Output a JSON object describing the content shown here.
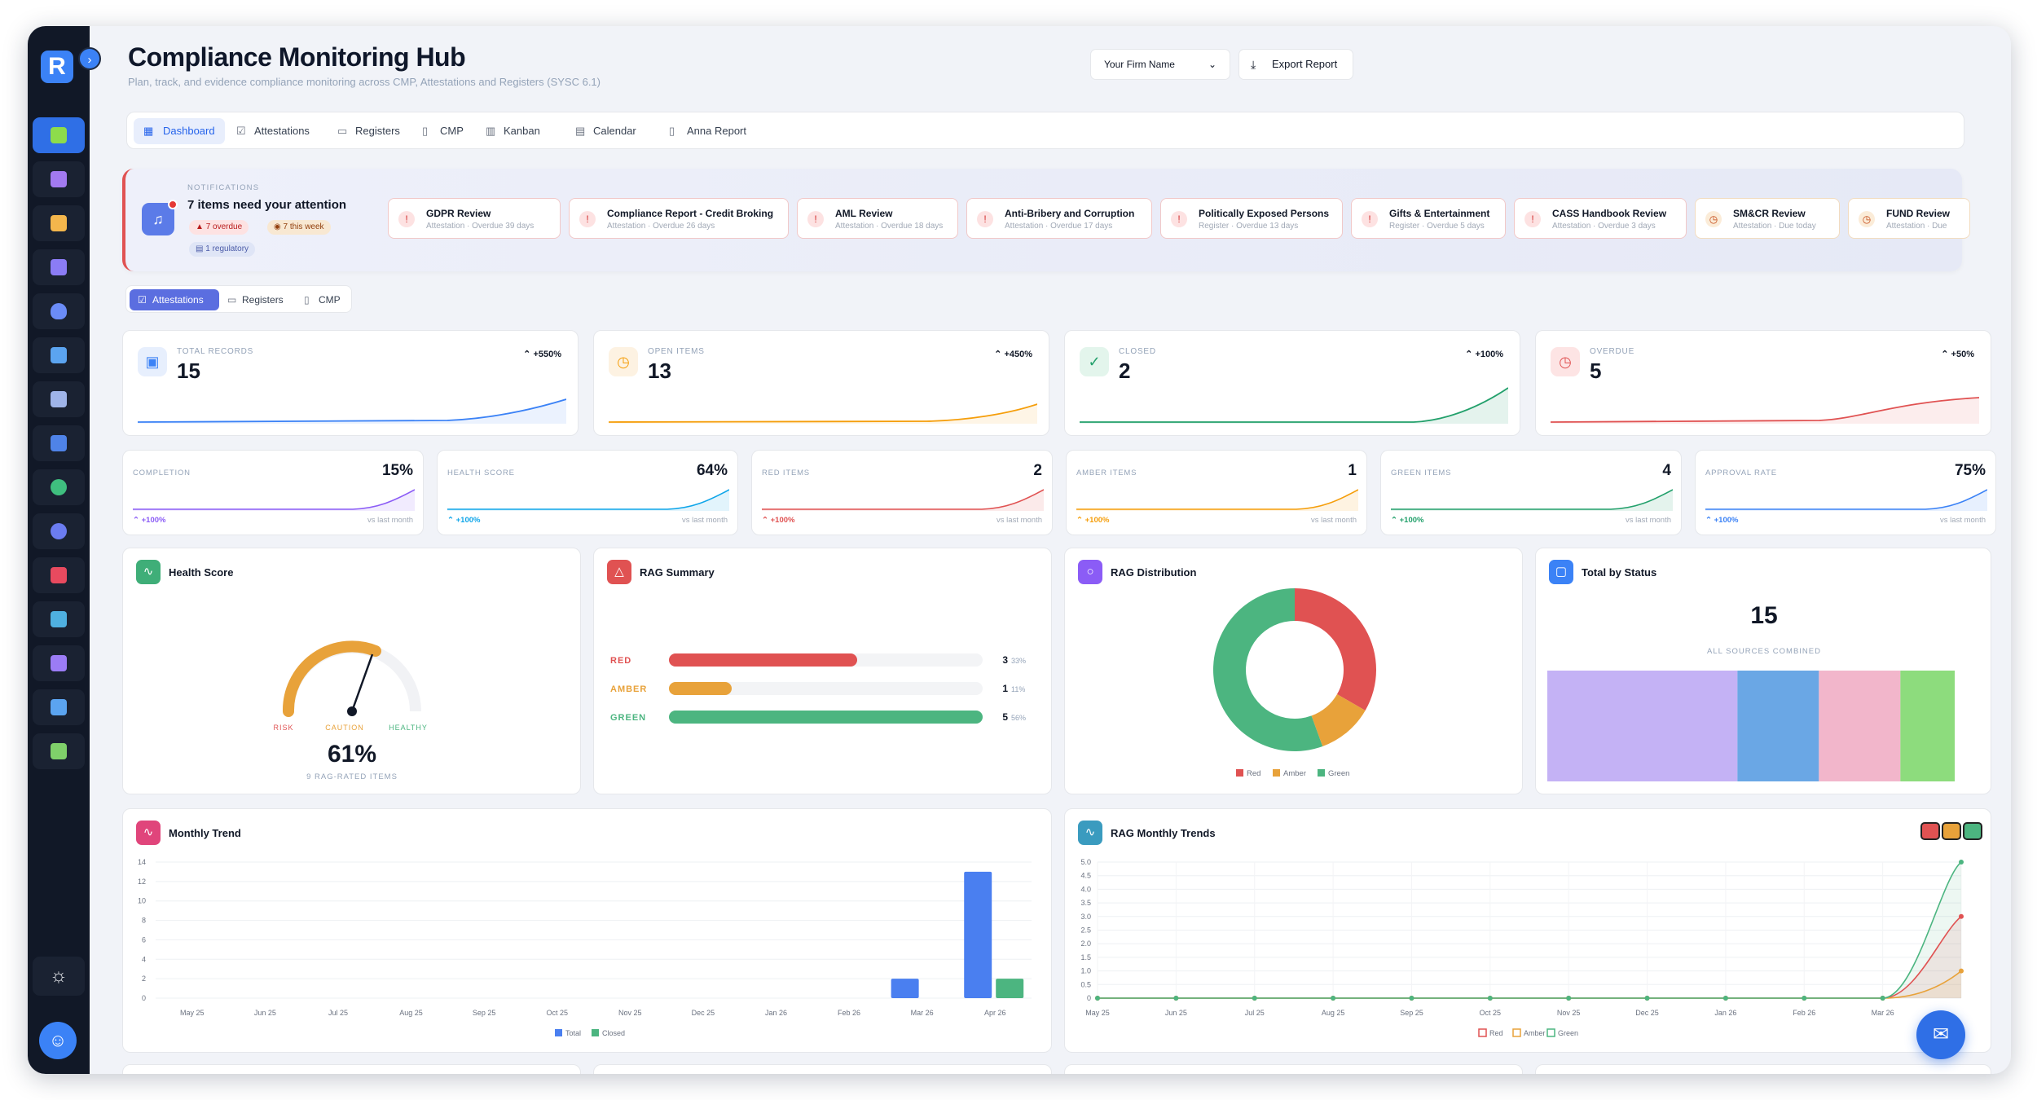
{
  "header": {
    "title": "Compliance Monitoring Hub",
    "subtitle": "Plan, track, and evidence compliance monitoring across CMP, Attestations and Registers (SYSC 6.1)",
    "firm_select": "Your Firm Name",
    "export_label": "Export Report"
  },
  "logo_letter": "R",
  "tabs": [
    {
      "label": "Dashboard",
      "icon": "grid-icon"
    },
    {
      "label": "Attestations",
      "icon": "check-square-icon"
    },
    {
      "label": "Registers",
      "icon": "book-icon"
    },
    {
      "label": "CMP",
      "icon": "file-icon"
    },
    {
      "label": "Kanban",
      "icon": "kanban-icon"
    },
    {
      "label": "Calendar",
      "icon": "calendar-icon"
    },
    {
      "label": "Anna Report",
      "icon": "report-icon"
    }
  ],
  "notifications": {
    "label": "NOTIFICATIONS",
    "heading": "7 items need your attention",
    "overdue": "7 overdue",
    "this_week": "7 this week",
    "regulatory": "1 regulatory",
    "items": [
      {
        "title": "GDPR Review",
        "sub": "Attestation · Overdue 39 days"
      },
      {
        "title": "Compliance Report - Credit Broking",
        "sub": "Attestation · Overdue 26 days"
      },
      {
        "title": "AML Review",
        "sub": "Attestation · Overdue 18 days"
      },
      {
        "title": "Anti-Bribery and Corruption",
        "sub": "Attestation · Overdue 17 days"
      },
      {
        "title": "Politically Exposed Persons",
        "sub": "Register · Overdue 13 days"
      },
      {
        "title": "Gifts & Entertainment",
        "sub": "Register · Overdue 5 days"
      },
      {
        "title": "CASS Handbook Review",
        "sub": "Attestation · Overdue 3 days"
      },
      {
        "title": "SM&CR Review",
        "sub": "Attestation · Due today"
      },
      {
        "title": "FUND Review",
        "sub": "Attestation · Due"
      }
    ]
  },
  "subtabs": [
    {
      "label": "Attestations"
    },
    {
      "label": "Registers"
    },
    {
      "label": "CMP"
    }
  ],
  "kpis": [
    {
      "label": "TOTAL RECORDS",
      "value": "15",
      "change": "+550%",
      "color": "#3b82f6"
    },
    {
      "label": "OPEN ITEMS",
      "value": "13",
      "change": "+450%",
      "color": "#f59e0b"
    },
    {
      "label": "CLOSED",
      "value": "2",
      "change": "+100%",
      "color": "#22a06b"
    },
    {
      "label": "OVERDUE",
      "value": "5",
      "change": "+50%",
      "color": "#e05252"
    }
  ],
  "metrics": [
    {
      "label": "COMPLETION",
      "value": "15%",
      "change": "+100%",
      "vs": "vs last month",
      "color": "#8b5cf6"
    },
    {
      "label": "HEALTH SCORE",
      "value": "64%",
      "change": "+100%",
      "vs": "vs last month",
      "color": "#0ea5e9"
    },
    {
      "label": "RED ITEMS",
      "value": "2",
      "change": "+100%",
      "vs": "vs last month",
      "color": "#e05252"
    },
    {
      "label": "AMBER ITEMS",
      "value": "1",
      "change": "+100%",
      "vs": "vs last month",
      "color": "#f59e0b"
    },
    {
      "label": "GREEN ITEMS",
      "value": "4",
      "change": "+100%",
      "vs": "vs last month",
      "color": "#22a06b"
    },
    {
      "label": "APPROVAL RATE",
      "value": "75%",
      "change": "+100%",
      "vs": "vs last month",
      "color": "#3b82f6"
    }
  ],
  "health": {
    "title": "Health Score",
    "value": "61%",
    "sub": "9 RAG-RATED ITEMS",
    "risk": "RISK",
    "caution": "CAUTION",
    "healthy": "HEALTHY",
    "score": 0.61
  },
  "rag_summary": {
    "title": "RAG Summary",
    "rows": [
      {
        "label": "RED",
        "count": "3",
        "pct": "33%",
        "fraction": 0.6,
        "color": "#e05252"
      },
      {
        "label": "AMBER",
        "count": "1",
        "pct": "11%",
        "fraction": 0.2,
        "color": "#e8a23a"
      },
      {
        "label": "GREEN",
        "count": "5",
        "pct": "56%",
        "fraction": 1.0,
        "color": "#4cb580"
      }
    ]
  },
  "rag_dist": {
    "title": "RAG Distribution",
    "legend": [
      "Red",
      "Amber",
      "Green"
    ],
    "colors": [
      "#e05252",
      "#e8a23a",
      "#4cb580"
    ],
    "values": [
      3,
      1,
      5
    ]
  },
  "status": {
    "title": "Total by Status",
    "total": "15",
    "sub": "ALL SOURCES COMBINED",
    "segments": [
      {
        "value": 7,
        "color": "#c4b2f5"
      },
      {
        "value": 3,
        "color": "#6aa7e5"
      },
      {
        "value": 3,
        "color": "#f2b6cb"
      },
      {
        "value": 2,
        "color": "#8ddc7d"
      }
    ]
  },
  "chart_data": [
    {
      "type": "bar",
      "title": "Monthly Trend",
      "categories": [
        "May 25",
        "Jun 25",
        "Jul 25",
        "Aug 25",
        "Sep 25",
        "Oct 25",
        "Nov 25",
        "Dec 25",
        "Jan 26",
        "Feb 26",
        "Mar 26",
        "Apr 26"
      ],
      "series": [
        {
          "name": "Total",
          "color": "#4a7ff0",
          "values": [
            0,
            0,
            0,
            0,
            0,
            0,
            0,
            0,
            0,
            0,
            2,
            13
          ]
        },
        {
          "name": "Closed",
          "color": "#4cb580",
          "values": [
            0,
            0,
            0,
            0,
            0,
            0,
            0,
            0,
            0,
            0,
            0,
            2
          ]
        }
      ],
      "yticks": [
        "14",
        "12",
        "10",
        "8",
        "6",
        "4",
        "2",
        "0"
      ],
      "ylim": [
        0,
        14
      ]
    },
    {
      "type": "line",
      "title": "RAG Monthly Trends",
      "categories": [
        "May 25",
        "Jun 25",
        "Jul 25",
        "Aug 25",
        "Sep 25",
        "Oct 25",
        "Nov 25",
        "Dec 25",
        "Jan 26",
        "Feb 26",
        "Mar 26",
        ""
      ],
      "series": [
        {
          "name": "Red",
          "color": "#e05252",
          "values": [
            0,
            0,
            0,
            0,
            0,
            0,
            0,
            0,
            0,
            0,
            0,
            3
          ]
        },
        {
          "name": "Amber",
          "color": "#e8a23a",
          "values": [
            0,
            0,
            0,
            0,
            0,
            0,
            0,
            0,
            0,
            0,
            0,
            1
          ]
        },
        {
          "name": "Green",
          "color": "#4cb580",
          "values": [
            0,
            0,
            0,
            0,
            0,
            0,
            0,
            0,
            0,
            0,
            0,
            5
          ]
        }
      ],
      "yticks": [
        "5.0",
        "4.5",
        "4.0",
        "3.5",
        "3.0",
        "2.5",
        "2.0",
        "1.5",
        "1.0",
        "0.5",
        "0"
      ],
      "ylim": [
        0,
        5
      ]
    }
  ]
}
